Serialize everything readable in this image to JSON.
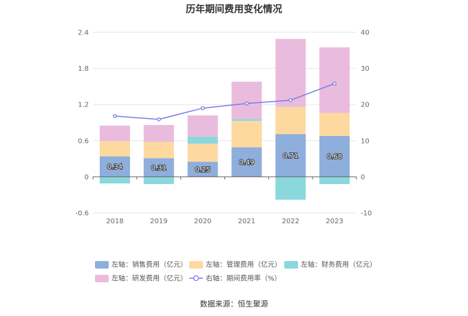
{
  "chart_data": {
    "type": "bar",
    "title": "历年期间费用变化情况",
    "categories": [
      "2018",
      "2019",
      "2020",
      "2021",
      "2022",
      "2023"
    ],
    "left_axis": {
      "ylim": [
        -0.6,
        2.4
      ],
      "ticks": [
        "-0.6",
        "0",
        "0.6",
        "1.2",
        "1.8",
        "2.4"
      ]
    },
    "right_axis": {
      "ylim": [
        -10,
        40
      ],
      "ticks": [
        "-10",
        "0",
        "10",
        "20",
        "30",
        "40"
      ]
    },
    "series": [
      {
        "name": "左轴：销售费用（亿元）",
        "type": "bar",
        "stack": true,
        "axis": "left",
        "color": "#8eaedc",
        "values": [
          0.34,
          0.31,
          0.25,
          0.49,
          0.71,
          0.68
        ],
        "labels": [
          "0.34",
          "0.31",
          "0.25",
          "0.49",
          "0.71",
          "0.68"
        ]
      },
      {
        "name": "左轴：管理费用（亿元）",
        "type": "bar",
        "stack": true,
        "axis": "left",
        "color": "#fdd9a0",
        "values": [
          0.25,
          0.27,
          0.3,
          0.44,
          0.45,
          0.38
        ]
      },
      {
        "name": "左轴：财务费用（亿元）",
        "type": "bar",
        "stack": true,
        "axis": "left",
        "color": "#8ad7dc",
        "values": [
          -0.11,
          -0.12,
          0.12,
          0.03,
          -0.38,
          -0.12
        ]
      },
      {
        "name": "左轴：研发费用（亿元）",
        "type": "bar",
        "stack": true,
        "axis": "left",
        "color": "#e9bcde",
        "values": [
          0.26,
          0.28,
          0.35,
          0.62,
          1.13,
          1.09
        ]
      },
      {
        "name": "右轴：期间费用率（%）",
        "type": "line",
        "axis": "right",
        "color": "#7b7bea",
        "values": [
          16.8,
          15.9,
          19.0,
          20.3,
          21.2,
          25.8
        ]
      }
    ],
    "legend_position": "bottom",
    "grid": true
  },
  "footer": {
    "source": "数据来源：恒生聚源"
  }
}
